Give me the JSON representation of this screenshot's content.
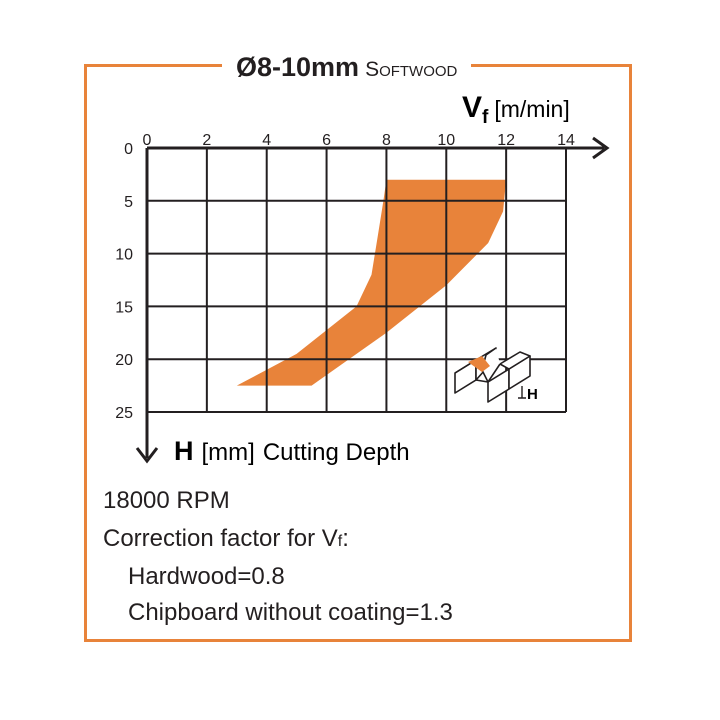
{
  "title": {
    "main": "Ø8-10mm",
    "sub": "Softwood"
  },
  "x_axis": {
    "symbol": "V",
    "subscript": "f",
    "unit": "[m/min]"
  },
  "y_axis": {
    "symbol": "H",
    "unit": "[mm]",
    "description": "Cutting Depth"
  },
  "inset_label": "H",
  "notes": {
    "rpm": "18000 RPM",
    "correction_prefix": "Correction factor for V",
    "correction_sub": "f",
    "correction_suffix": ":",
    "hardwood": "Hardwood=0.8",
    "chipboard": "Chipboard without coating=1.3"
  },
  "colors": {
    "accent": "#e8833a",
    "line": "#231f20"
  },
  "chart_data": {
    "type": "area",
    "title": "Ø8-10mm Softwood",
    "xlabel": "Vf [m/min]",
    "ylabel": "H [mm] Cutting Depth",
    "xlim": [
      0,
      14
    ],
    "ylim": [
      0,
      25
    ],
    "x_ticks": [
      0,
      2,
      4,
      6,
      8,
      10,
      12,
      14
    ],
    "y_ticks": [
      0,
      5,
      10,
      15,
      20,
      25
    ],
    "y_inverted": true,
    "x_axis_position": "top",
    "grid": true,
    "region_lower_edge": [
      {
        "x": 3.0,
        "y": 22.5
      },
      {
        "x": 5.0,
        "y": 19.5
      },
      {
        "x": 7.0,
        "y": 15.0
      },
      {
        "x": 7.5,
        "y": 12.0
      },
      {
        "x": 7.7,
        "y": 8.5
      },
      {
        "x": 7.9,
        "y": 5.0
      },
      {
        "x": 8.0,
        "y": 3.0
      }
    ],
    "region_upper_edge": [
      {
        "x": 12.0,
        "y": 3.0
      },
      {
        "x": 11.9,
        "y": 6.0
      },
      {
        "x": 11.4,
        "y": 9.0
      },
      {
        "x": 10.0,
        "y": 13.0
      },
      {
        "x": 8.0,
        "y": 17.5
      },
      {
        "x": 5.5,
        "y": 22.5
      }
    ]
  }
}
